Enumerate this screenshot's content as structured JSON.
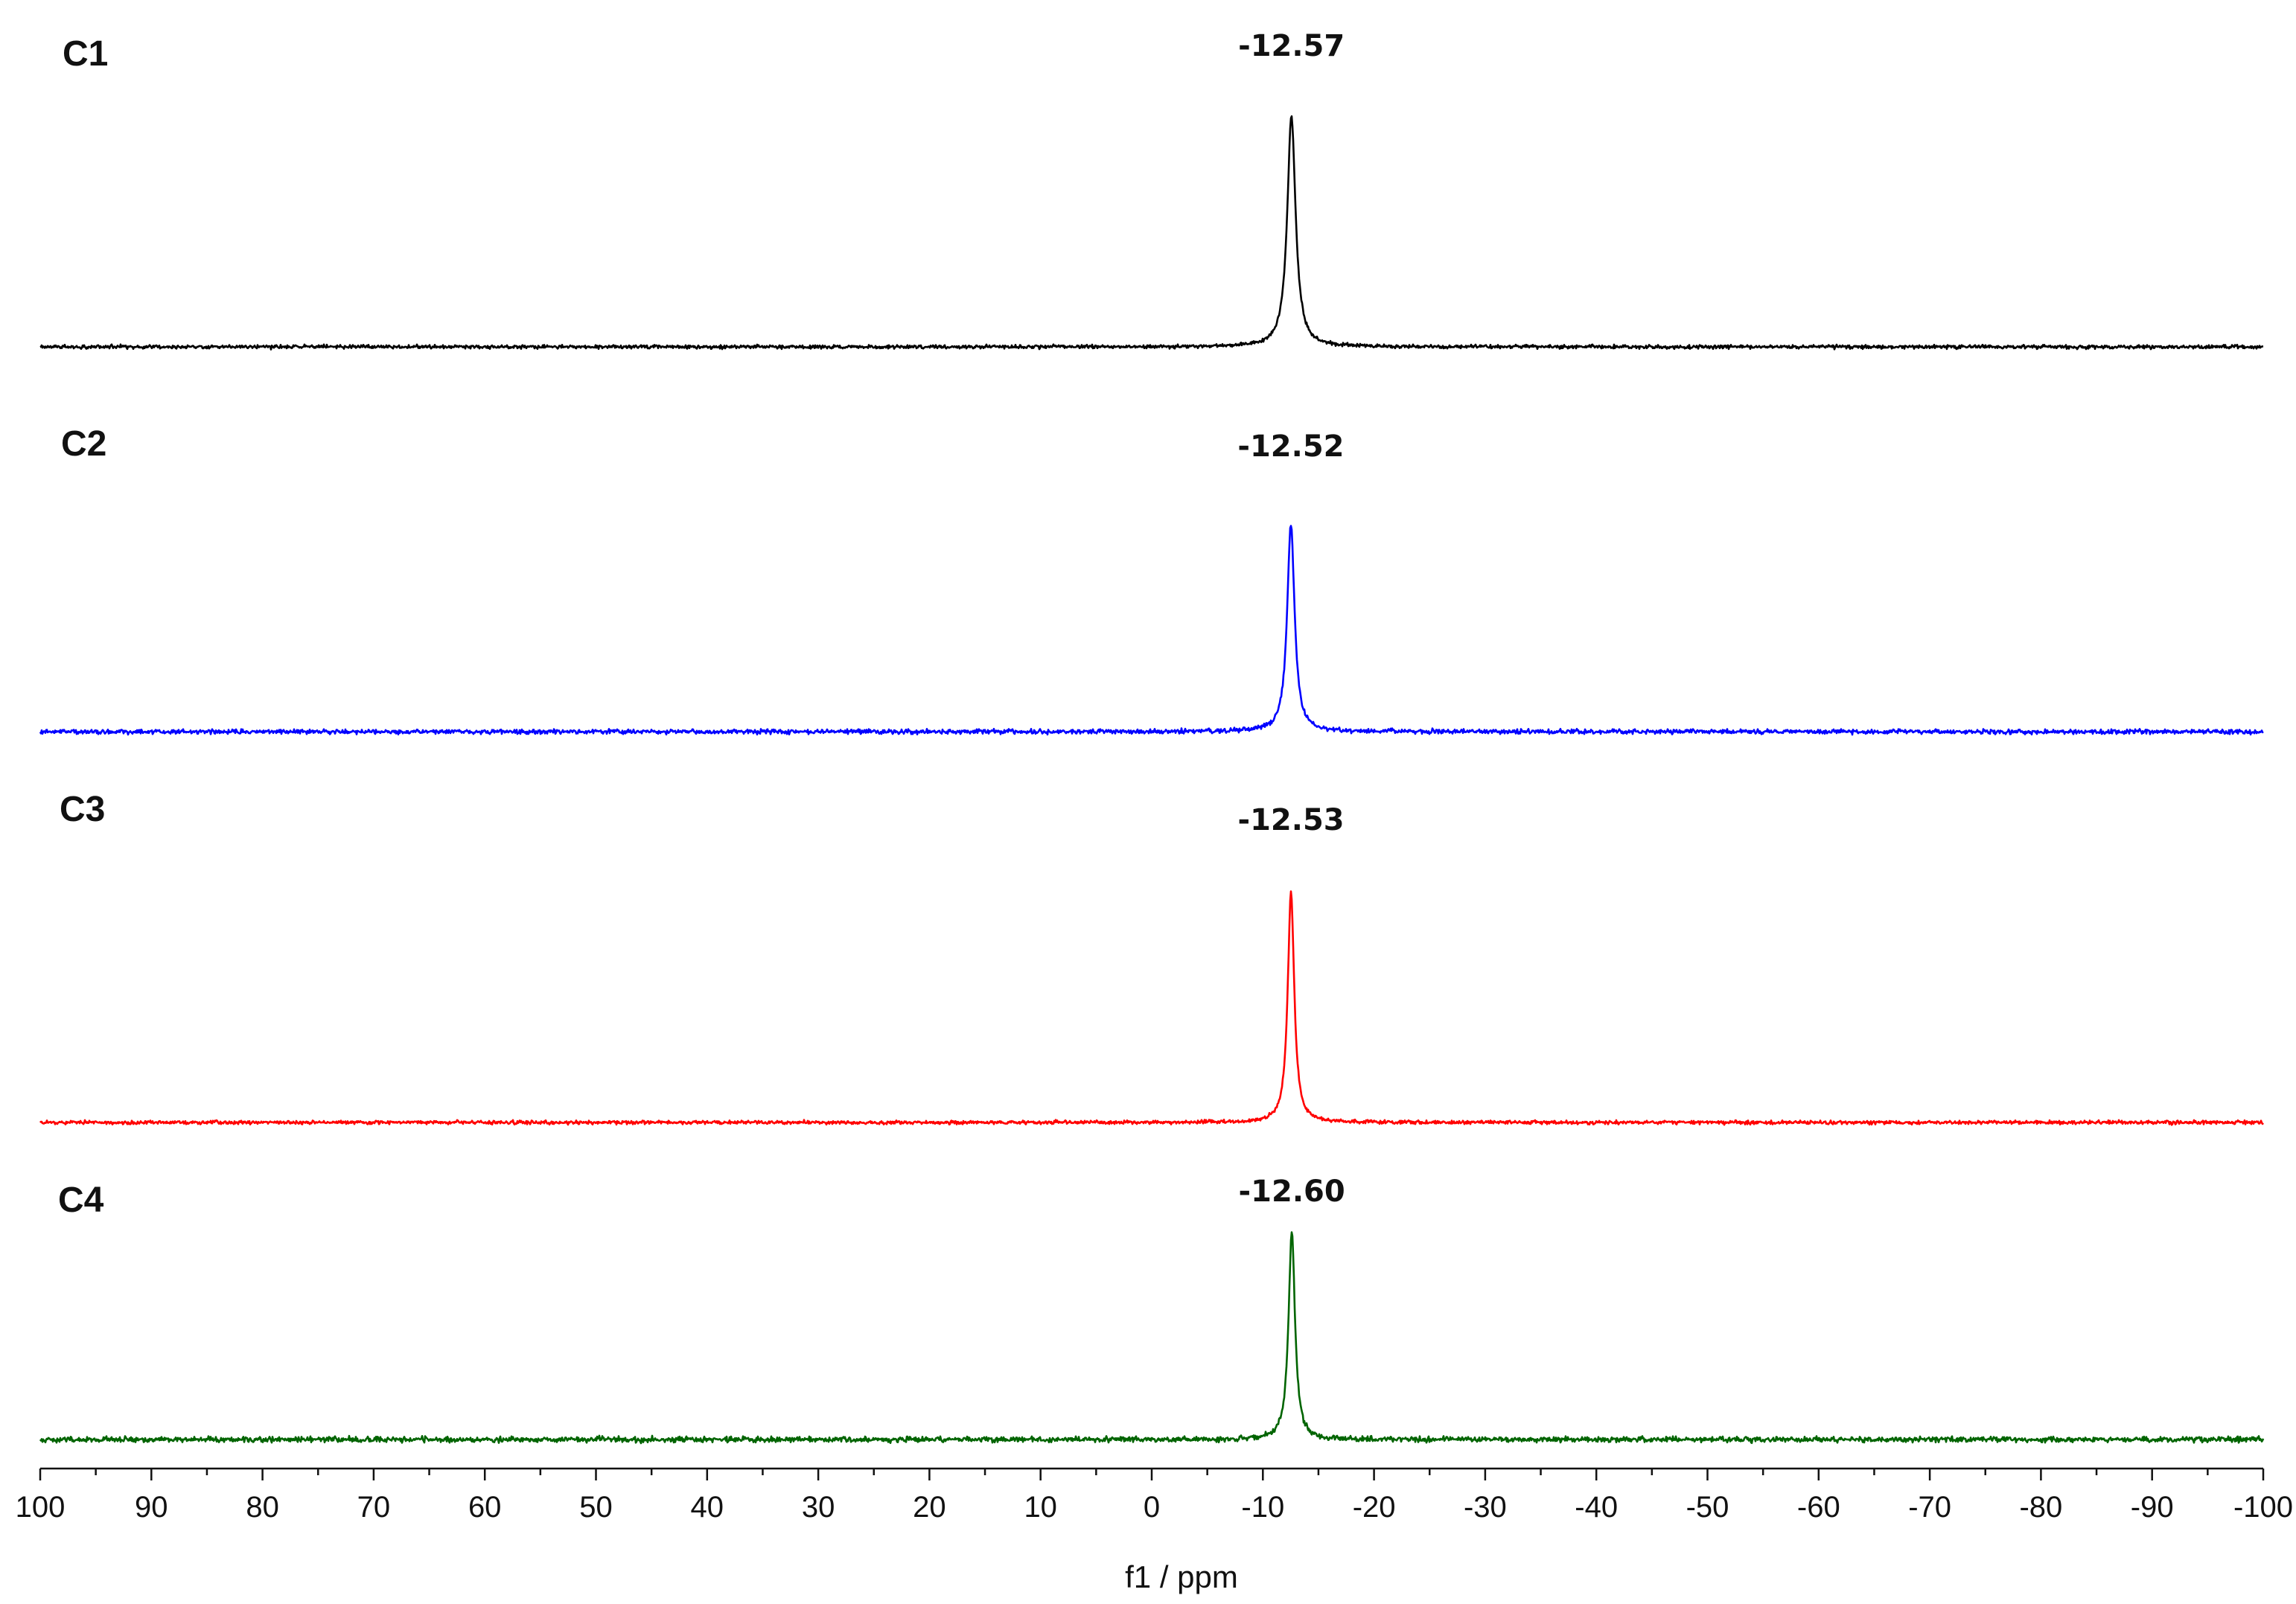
{
  "chart_data": {
    "type": "line",
    "xlabel": "f1 / ppm",
    "ylabel": "",
    "title": "",
    "xlim": [
      100,
      -100
    ],
    "x_reversed": true,
    "x_ticks": [
      100,
      90,
      80,
      70,
      60,
      50,
      40,
      30,
      20,
      10,
      0,
      -10,
      -20,
      -30,
      -40,
      -50,
      -60,
      -70,
      -80,
      -90,
      -100
    ],
    "grid": false,
    "legend": "none",
    "series": [
      {
        "name": "C1",
        "color": "#000000",
        "peak_ppm": -12.57,
        "peak_label": "-12.57",
        "relative_intensity": 1.0,
        "linewidth_ppm": 0.9
      },
      {
        "name": "C2",
        "color": "#0000ff",
        "peak_ppm": -12.52,
        "peak_label": "-12.52",
        "relative_intensity": 0.9,
        "linewidth_ppm": 0.8
      },
      {
        "name": "C3",
        "color": "#ff0000",
        "peak_ppm": -12.53,
        "peak_label": "-12.53",
        "relative_intensity": 1.0,
        "linewidth_ppm": 0.7
      },
      {
        "name": "C4",
        "color": "#006400",
        "peak_ppm": -12.6,
        "peak_label": "-12.60",
        "relative_intensity": 0.9,
        "linewidth_ppm": 0.7
      }
    ]
  }
}
